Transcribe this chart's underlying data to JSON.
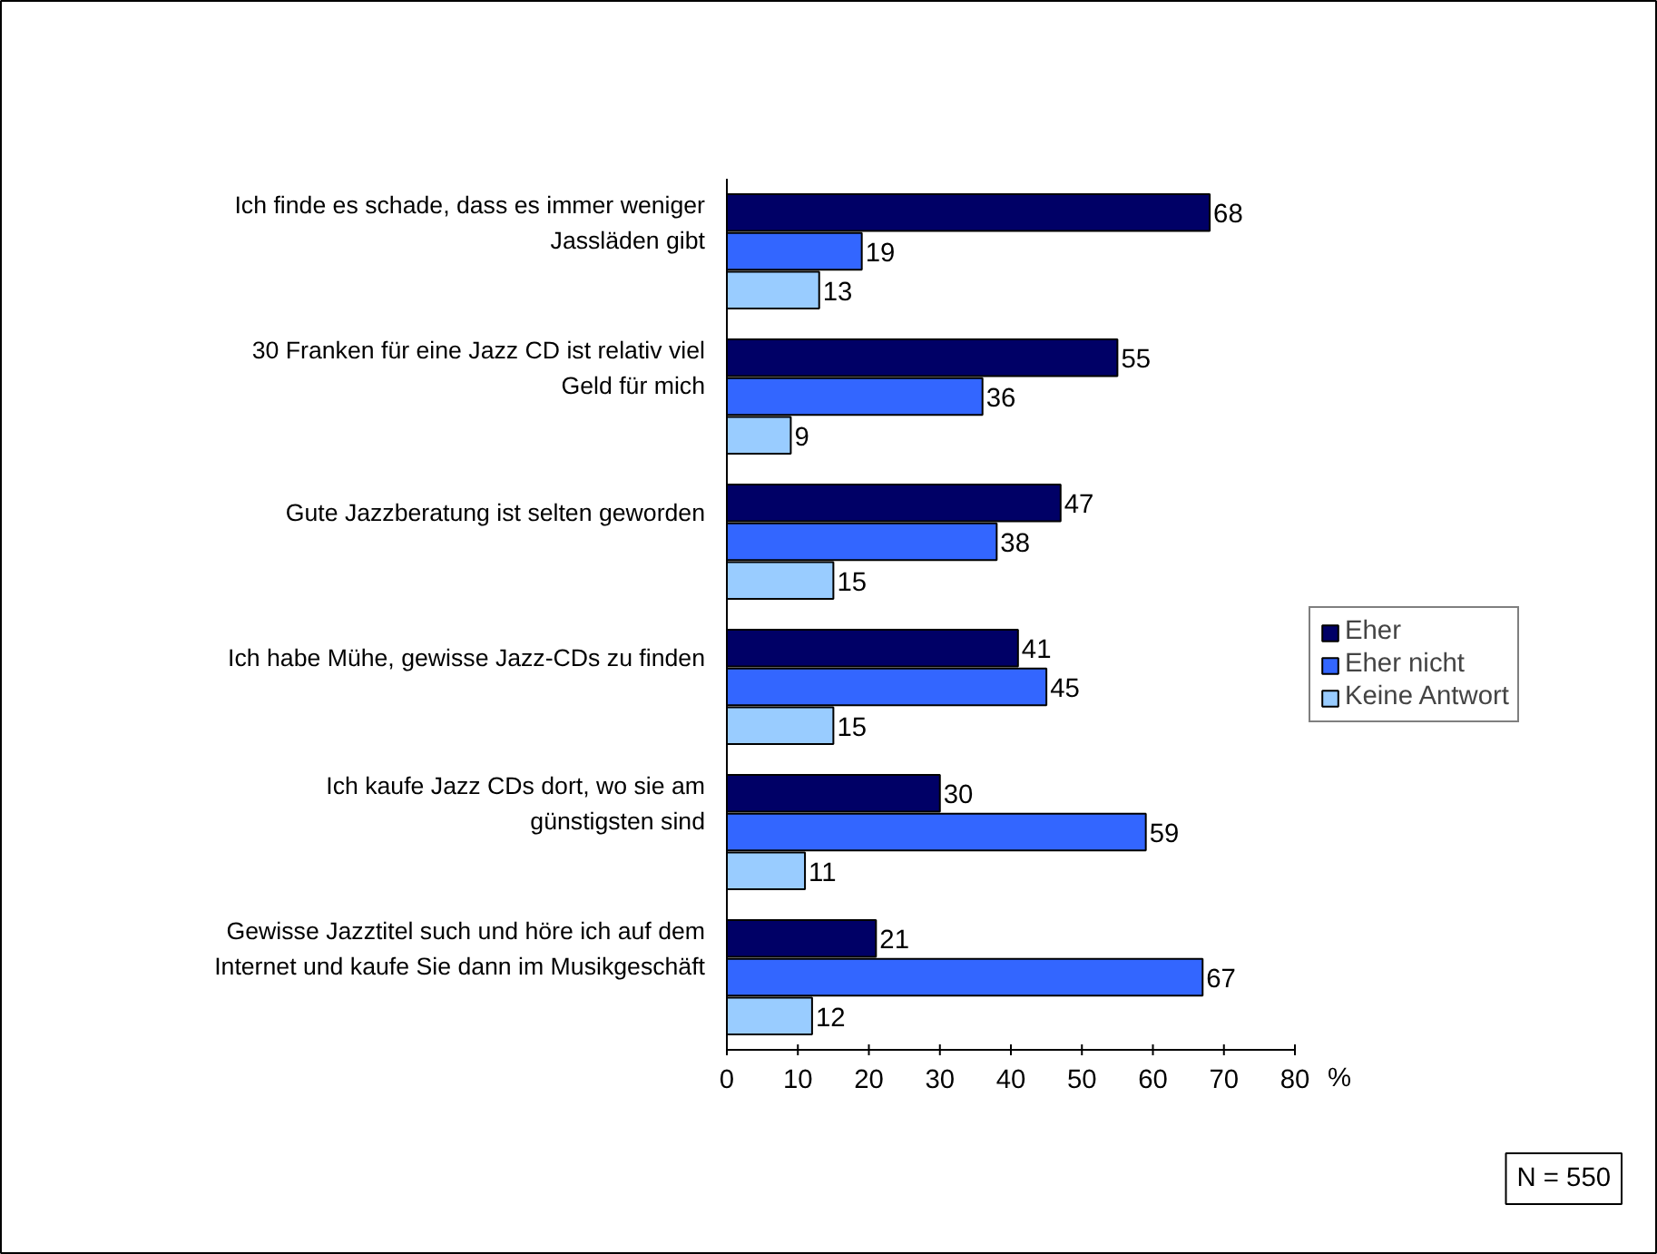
{
  "chart_data": {
    "type": "bar",
    "orientation": "horizontal",
    "categories": [
      "Ich finde es schade, dass es immer weniger Jassläden gibt",
      "30 Franken für eine Jazz CD ist relativ viel Geld für mich",
      "Gute Jazzberatung ist selten geworden",
      "Ich habe Mühe, gewisse Jazz-CDs zu finden",
      "Ich kaufe Jazz CDs dort, wo sie am günstigsten sind",
      "Gewisse Jazztitel such und höre ich auf dem Internet und kaufe Sie dann im Musikgeschäft"
    ],
    "series": [
      {
        "name": "Eher",
        "color": "#000066",
        "values": [
          68,
          55,
          47,
          41,
          30,
          21
        ]
      },
      {
        "name": "Eher nicht",
        "color": "#3366ff",
        "values": [
          19,
          36,
          38,
          45,
          59,
          67
        ]
      },
      {
        "name": "Keine Antwort",
        "color": "#99ccff",
        "values": [
          13,
          9,
          15,
          15,
          11,
          12
        ]
      }
    ],
    "xlim": [
      0,
      80
    ],
    "xticks": [
      0,
      10,
      20,
      30,
      40,
      50,
      60,
      70,
      80
    ],
    "xlabel": "%",
    "data_labels": true,
    "legend": "right",
    "grid": false,
    "annotations": [
      "N = 550"
    ]
  }
}
